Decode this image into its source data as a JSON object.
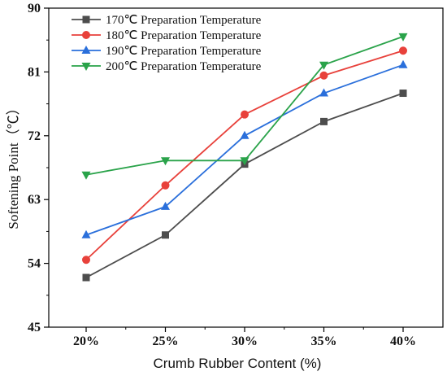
{
  "chart_data": {
    "type": "line",
    "categories": [
      "20%",
      "25%",
      "30%",
      "35%",
      "40%"
    ],
    "xlabel": "Crumb Rubber Content (%)",
    "ylabel": "Softening Point（℃）",
    "ylim": [
      45,
      90
    ],
    "yticks": [
      45,
      54,
      63,
      72,
      81,
      90
    ],
    "grid": false,
    "legend_position": "top-left",
    "series": [
      {
        "name": "170℃ Preparation Temperature",
        "color": "#4d4d4d",
        "marker": "square",
        "values": [
          52.0,
          58.0,
          68.0,
          74.0,
          78.0
        ]
      },
      {
        "name": "180℃ Preparation Temperature",
        "color": "#e8413b",
        "marker": "circle",
        "values": [
          54.5,
          65.0,
          75.0,
          80.5,
          84.0
        ]
      },
      {
        "name": "190℃ Preparation Temperature",
        "color": "#2a6fdb",
        "marker": "triangle-up",
        "values": [
          58.0,
          62.0,
          72.0,
          78.0,
          82.0
        ]
      },
      {
        "name": "200℃ Preparation Temperature",
        "color": "#2aa34a",
        "marker": "triangle-down",
        "values": [
          66.5,
          68.5,
          68.5,
          82.0,
          86.0
        ]
      }
    ]
  }
}
